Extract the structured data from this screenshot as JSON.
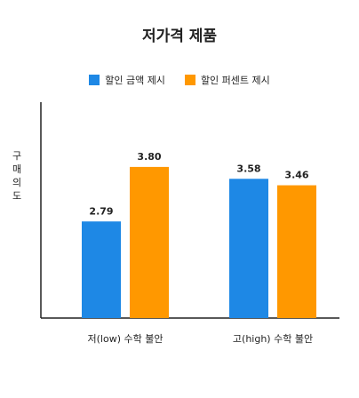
{
  "chart_data": {
    "type": "bar",
    "title": "저가격 제품",
    "xlabel": "",
    "ylabel": "구매의도",
    "categories": [
      "저(low) 수학 불안",
      "고(high) 수학 불안"
    ],
    "series": [
      {
        "name": "할인 금액 제시",
        "color": "#1E88E5",
        "values": [
          2.79,
          3.58
        ]
      },
      {
        "name": "할인 퍼센트 제시",
        "color": "#FF9800",
        "values": [
          3.8,
          3.46
        ]
      }
    ],
    "value_labels": [
      [
        "2.79",
        "3.58"
      ],
      [
        "3.80",
        "3.46"
      ]
    ],
    "ylim": [
      1,
      5
    ],
    "grid": false,
    "legend_position": "top-center"
  }
}
